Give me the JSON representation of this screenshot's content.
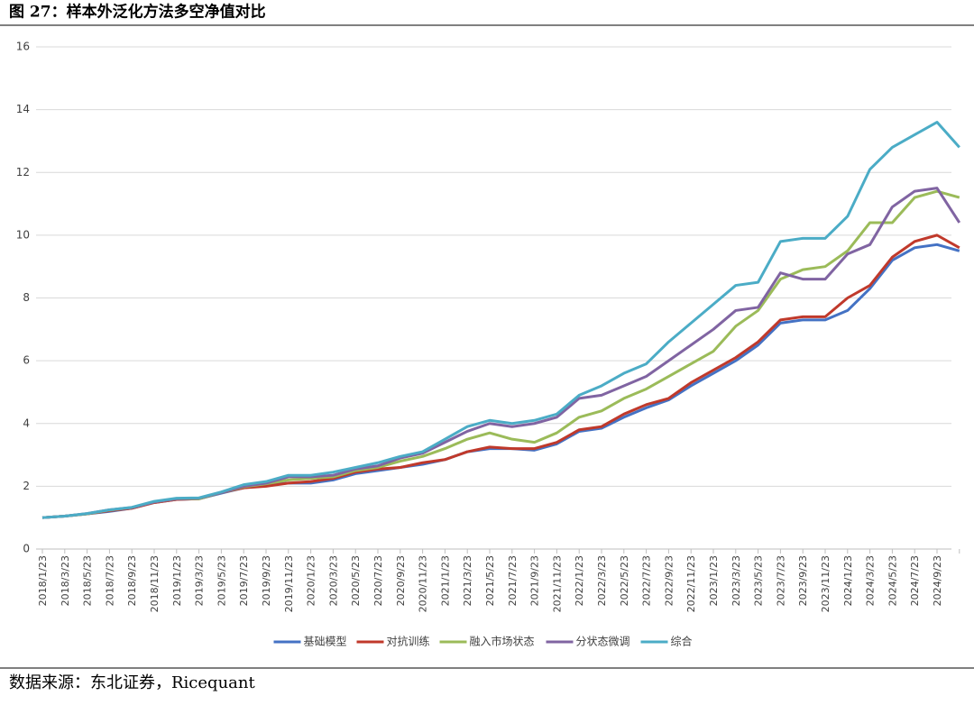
{
  "chart_data": {
    "type": "line",
    "title": "图 27：样本外泛化方法多空净值对比",
    "source": "数据来源：东北证券，Ricequant",
    "categories": [
      "2018/1/23",
      "2018/3/23",
      "2018/5/23",
      "2018/7/23",
      "2018/9/23",
      "2018/11/23",
      "2019/1/23",
      "2019/3/23",
      "2019/5/23",
      "2019/7/23",
      "2019/9/23",
      "2019/11/23",
      "2020/1/23",
      "2020/3/23",
      "2020/5/23",
      "2020/7/23",
      "2020/9/23",
      "2020/11/23",
      "2021/1/23",
      "2021/3/23",
      "2021/5/23",
      "2021/7/23",
      "2021/9/23",
      "2021/11/23",
      "2022/1/23",
      "2022/3/23",
      "2022/5/23",
      "2022/7/23",
      "2022/9/23",
      "2022/11/23",
      "2023/1/23",
      "2023/3/23",
      "2023/5/23",
      "2023/7/23",
      "2023/9/23",
      "2023/11/23",
      "2024/1/23",
      "2024/3/23",
      "2024/5/23",
      "2024/7/23",
      "2024/9/23",
      null
    ],
    "series": [
      {
        "name": "基础模型",
        "color": "#4472c4",
        "values": [
          1.0,
          1.05,
          1.12,
          1.2,
          1.3,
          1.48,
          1.58,
          1.6,
          1.78,
          1.95,
          2.05,
          2.1,
          2.1,
          2.2,
          2.4,
          2.5,
          2.6,
          2.7,
          2.85,
          3.1,
          3.2,
          3.2,
          3.15,
          3.35,
          3.75,
          3.85,
          4.2,
          4.5,
          4.75,
          5.2,
          5.6,
          6.0,
          6.5,
          7.2,
          7.3,
          7.3,
          7.6,
          8.3,
          9.2,
          9.6,
          9.7,
          9.5
        ]
      },
      {
        "name": "对抗训练",
        "color": "#c0392b",
        "values": [
          1.0,
          1.05,
          1.12,
          1.22,
          1.3,
          1.48,
          1.58,
          1.6,
          1.8,
          1.95,
          2.0,
          2.1,
          2.15,
          2.25,
          2.45,
          2.55,
          2.6,
          2.75,
          2.85,
          3.1,
          3.25,
          3.2,
          3.2,
          3.4,
          3.8,
          3.9,
          4.3,
          4.6,
          4.8,
          5.3,
          5.7,
          6.1,
          6.6,
          7.3,
          7.4,
          7.4,
          8.0,
          8.4,
          9.3,
          9.8,
          10.0,
          9.6
        ]
      },
      {
        "name": "融入市场状态",
        "color": "#9bbb59",
        "values": [
          1.0,
          1.05,
          1.12,
          1.24,
          1.32,
          1.5,
          1.6,
          1.6,
          1.8,
          1.98,
          2.08,
          2.2,
          2.25,
          2.3,
          2.5,
          2.6,
          2.8,
          2.95,
          3.2,
          3.5,
          3.7,
          3.5,
          3.4,
          3.7,
          4.2,
          4.4,
          4.8,
          5.1,
          5.5,
          5.9,
          6.3,
          7.1,
          7.6,
          8.6,
          8.9,
          9.0,
          9.5,
          10.4,
          10.4,
          11.2,
          11.4,
          11.2
        ]
      },
      {
        "name": "分状态微调",
        "color": "#8064a2",
        "values": [
          1.0,
          1.05,
          1.13,
          1.25,
          1.32,
          1.5,
          1.6,
          1.62,
          1.8,
          2.0,
          2.1,
          2.3,
          2.3,
          2.35,
          2.55,
          2.65,
          2.9,
          3.05,
          3.4,
          3.75,
          4.0,
          3.9,
          4.0,
          4.2,
          4.8,
          4.9,
          5.2,
          5.5,
          6.0,
          6.5,
          7.0,
          7.6,
          7.7,
          8.8,
          8.6,
          8.6,
          9.4,
          9.7,
          10.9,
          11.4,
          11.5,
          10.4
        ]
      },
      {
        "name": "综合",
        "color": "#4bacc6",
        "values": [
          1.0,
          1.05,
          1.13,
          1.25,
          1.33,
          1.52,
          1.62,
          1.63,
          1.82,
          2.05,
          2.15,
          2.35,
          2.35,
          2.45,
          2.6,
          2.75,
          2.95,
          3.1,
          3.5,
          3.9,
          4.1,
          4.0,
          4.1,
          4.3,
          4.9,
          5.2,
          5.6,
          5.9,
          6.6,
          7.2,
          7.8,
          8.4,
          8.5,
          9.8,
          9.9,
          9.9,
          10.6,
          12.1,
          12.8,
          13.2,
          13.6,
          12.8
        ]
      }
    ],
    "ylim": [
      0,
      16
    ],
    "yticks": [
      0,
      2,
      4,
      6,
      8,
      10,
      12,
      14,
      16
    ],
    "grid": true
  }
}
